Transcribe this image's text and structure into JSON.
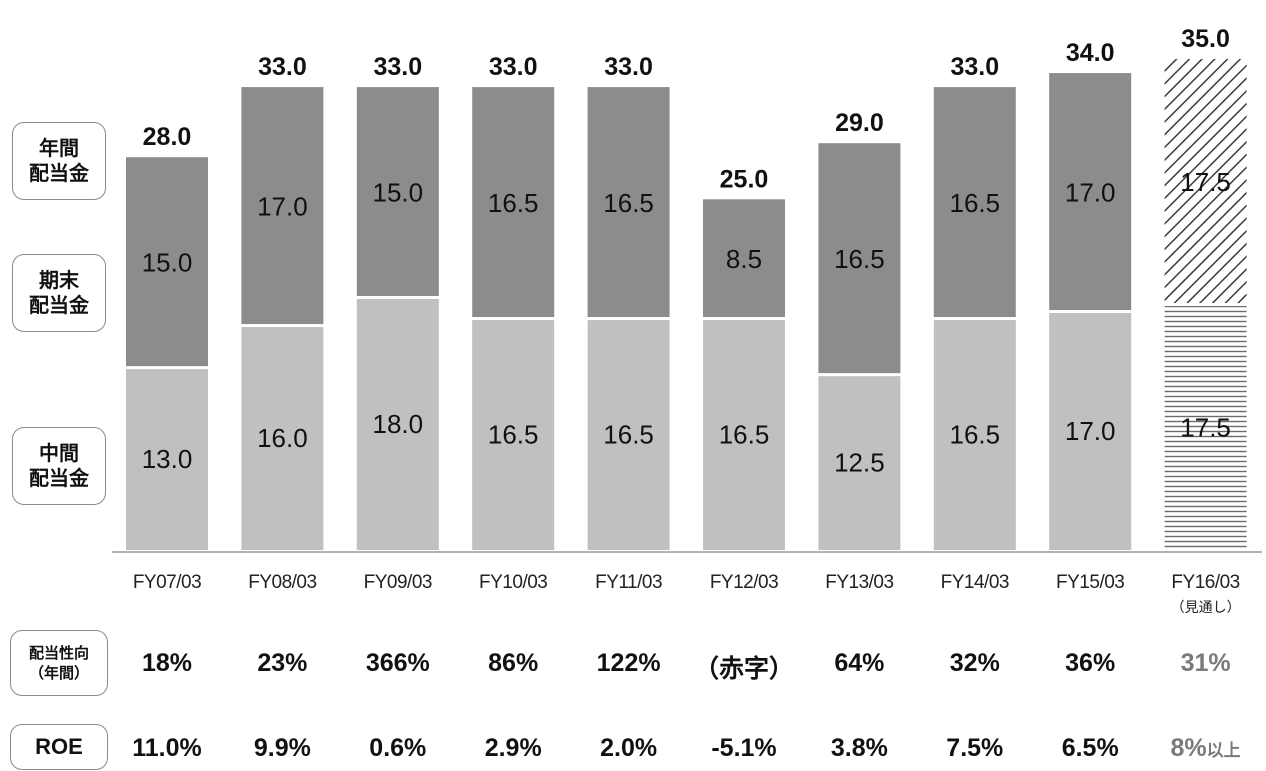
{
  "legend": {
    "annual": "年間\n配当金",
    "year_end": "期末\n配当金",
    "interim": "中間\n配当金"
  },
  "colors": {
    "interim": "#c0c0c0",
    "year_end": "#8c8c8c",
    "text": "#111111",
    "forecast_text": "#7a7a7a"
  },
  "chart_data": {
    "type": "bar",
    "stacked": true,
    "categories": [
      "FY07/03",
      "FY08/03",
      "FY09/03",
      "FY10/03",
      "FY11/03",
      "FY12/03",
      "FY13/03",
      "FY14/03",
      "FY15/03",
      "FY16/03"
    ],
    "category_notes": [
      "",
      "",
      "",
      "",
      "",
      "",
      "",
      "",
      "",
      "（見通し）"
    ],
    "series": [
      {
        "name": "中間配当金",
        "values": [
          13.0,
          16.0,
          18.0,
          16.5,
          16.5,
          16.5,
          12.5,
          16.5,
          17.0,
          17.5
        ]
      },
      {
        "name": "期末配当金",
        "values": [
          15.0,
          17.0,
          15.0,
          16.5,
          16.5,
          8.5,
          16.5,
          16.5,
          17.0,
          17.5
        ]
      }
    ],
    "totals": [
      28.0,
      33.0,
      33.0,
      33.0,
      33.0,
      25.0,
      29.0,
      33.0,
      34.0,
      35.0
    ],
    "forecast_index": 9,
    "ylim": [
      0,
      36
    ],
    "grid": false
  },
  "payout": {
    "label": "配当性向\n（年間）",
    "values": [
      "18%",
      "23%",
      "366%",
      "86%",
      "122%",
      "（赤字）",
      "64%",
      "32%",
      "36%",
      "31%"
    ]
  },
  "roe": {
    "label": "ROE",
    "values": [
      "11.0%",
      "9.9%",
      "0.6%",
      "2.9%",
      "2.0%",
      "-5.1%",
      "3.8%",
      "7.5%",
      "6.5%",
      "8%"
    ],
    "last_suffix": "以上"
  }
}
